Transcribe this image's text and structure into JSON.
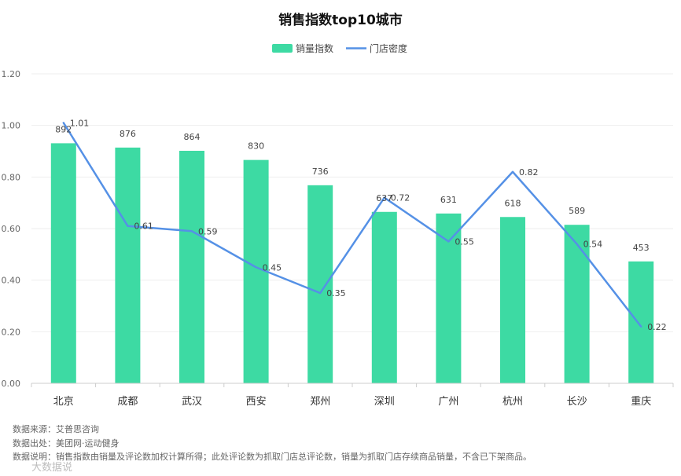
{
  "colors": {
    "bar": "#3DDAA3",
    "line": "#5591E6",
    "grid": "#eeeeee",
    "axis": "#cccccc"
  },
  "chart_data": {
    "type": "bar",
    "title": "销售指数top10城市",
    "legend_position": "top-center",
    "categories": [
      "北京",
      "成都",
      "武汉",
      "西安",
      "郑州",
      "深圳",
      "广州",
      "杭州",
      "长沙",
      "重庆"
    ],
    "series": [
      {
        "name": "销量指数",
        "type": "bar",
        "values": [
          892,
          876,
          864,
          830,
          736,
          637,
          631,
          618,
          589,
          453
        ]
      },
      {
        "name": "门店密度",
        "type": "line",
        "values": [
          1.01,
          0.61,
          0.59,
          0.45,
          0.35,
          0.72,
          0.55,
          0.82,
          0.54,
          0.22
        ]
      }
    ],
    "y_ticks": [
      "0.00",
      "0.20",
      "0.40",
      "0.60",
      "0.80",
      "1.00",
      "1.20"
    ],
    "ylim": [
      0,
      1.2
    ],
    "grid": true
  },
  "footer": {
    "source": "数据来源：艾普思咨询",
    "origin": "数据出处：美团网·运动健身",
    "note": "数据说明：销售指数由销量及评论数加权计算所得；此处评论数为抓取门店总评论数，销量为抓取门店存续商品销量，不含已下架商品。",
    "brand": "大数据说"
  }
}
